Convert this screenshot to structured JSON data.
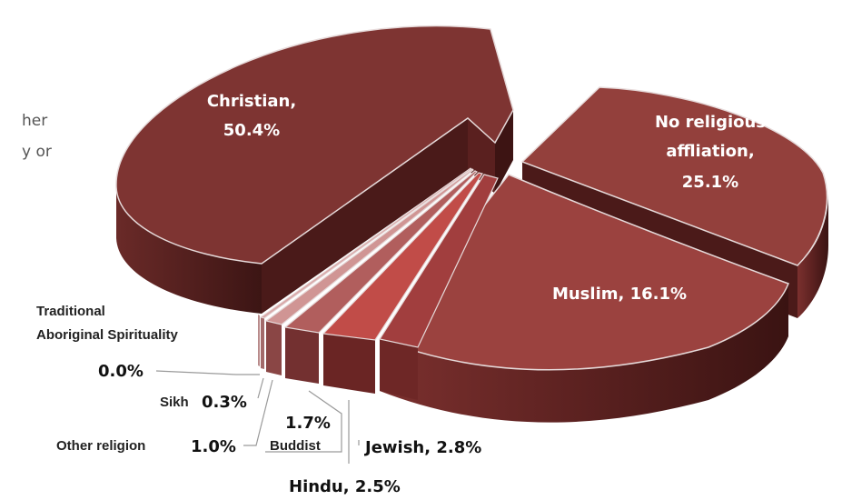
{
  "side_text": [
    "her",
    "y or"
  ],
  "colors": {
    "christian": "#7E3432",
    "no_religious": "#93403C",
    "muslim": "#9B423F",
    "jewish": "#A13E3E",
    "hindu": "#C14C48",
    "buddist": "#B15E5D",
    "other": "#D09594",
    "sikh": "#D9A8A8",
    "traditional": "#E2BEBE"
  },
  "chart_data": {
    "type": "pie",
    "style": "3d-exploded",
    "slices": [
      {
        "key": "christian",
        "value": 50.4,
        "label": [
          "Christian,",
          "50.4%"
        ]
      },
      {
        "key": "no_religious",
        "value": 25.1,
        "label": [
          "No religious",
          "affliation,",
          "25.1%"
        ]
      },
      {
        "key": "muslim",
        "value": 16.1,
        "label": [
          "Muslim, 16.1%"
        ]
      },
      {
        "key": "jewish",
        "value": 2.8,
        "label": [
          "Jewish, 2.8%"
        ]
      },
      {
        "key": "hindu",
        "value": 2.5,
        "label": [
          "Hindu, 2.5%"
        ]
      },
      {
        "key": "buddist",
        "value": 1.7,
        "label_value": "1.7%",
        "label_name": "Buddist"
      },
      {
        "key": "other",
        "value": 1.0,
        "label_name": "Other religion",
        "label_value": "1.0%"
      },
      {
        "key": "sikh",
        "value": 0.3,
        "label_name": "Sikh",
        "label_value": "0.3%"
      },
      {
        "key": "traditional",
        "value": 0.0,
        "label_name": [
          "Traditional",
          "Aboriginal Spirituality"
        ],
        "label_value": "0.0%"
      }
    ]
  }
}
